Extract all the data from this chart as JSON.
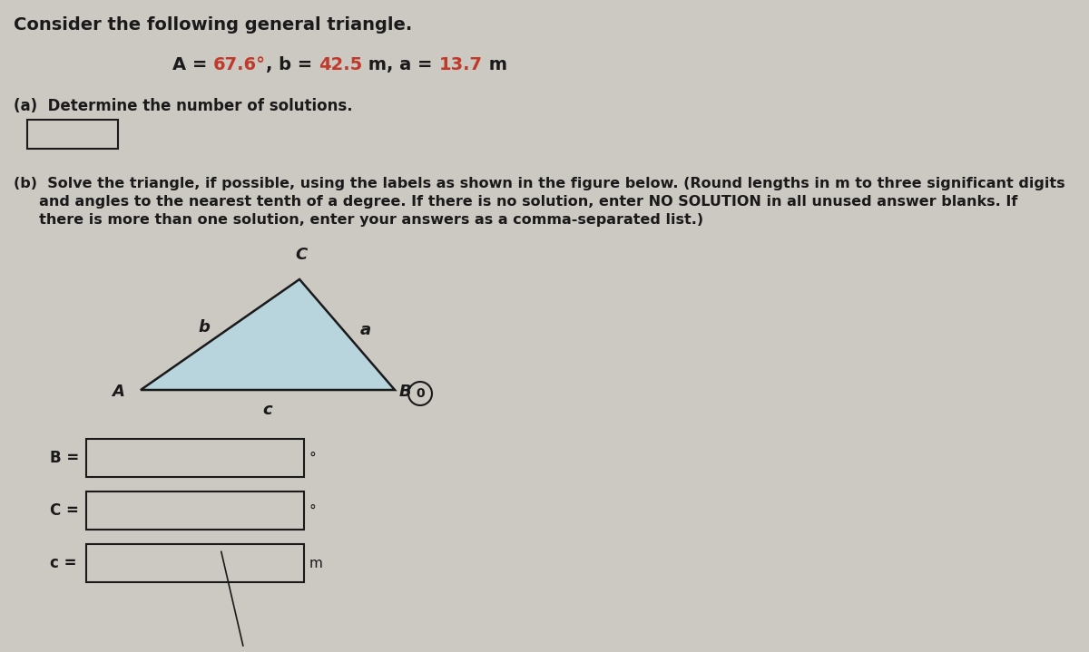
{
  "bg_color": "#ccc8c2",
  "title_line": "Consider the following general triangle.",
  "given_segments": [
    {
      "text": "A = ",
      "color": "#1a1a1a",
      "bold": true
    },
    {
      "text": "67.6°",
      "color": "#c0392b",
      "bold": true
    },
    {
      "text": ", b = ",
      "color": "#1a1a1a",
      "bold": true
    },
    {
      "text": "42.5",
      "color": "#c0392b",
      "bold": true
    },
    {
      "text": " m, a = ",
      "color": "#1a1a1a",
      "bold": true
    },
    {
      "text": "13.7",
      "color": "#c0392b",
      "bold": true
    },
    {
      "text": " m",
      "color": "#1a1a1a",
      "bold": true
    }
  ],
  "part_a_label": "(a)  Determine the number of solutions.",
  "part_b_lines": [
    "(b)  Solve the triangle, if possible, using the labels as shown in the figure below. (Round lengths in m to three significant digits",
    "     and angles to the nearest tenth of a degree. If there is no solution, enter NO SOLUTION in all unused answer blanks. If",
    "     there is more than one solution, enter your answers as a comma-separated list.)"
  ],
  "triangle_fill": "#b8d4dc",
  "vertex_A_label": "A",
  "vertex_B_label": "B",
  "vertex_C_label": "C",
  "side_a_label": "a",
  "side_b_label": "b",
  "side_c_label": "c",
  "unit_degree": "°",
  "unit_m": "m",
  "text_color_black": "#1a1a1a",
  "text_color_red": "#c0392b",
  "font_size_title": 14,
  "font_size_given": 14,
  "font_size_text": 11.5,
  "font_size_labels": 13
}
